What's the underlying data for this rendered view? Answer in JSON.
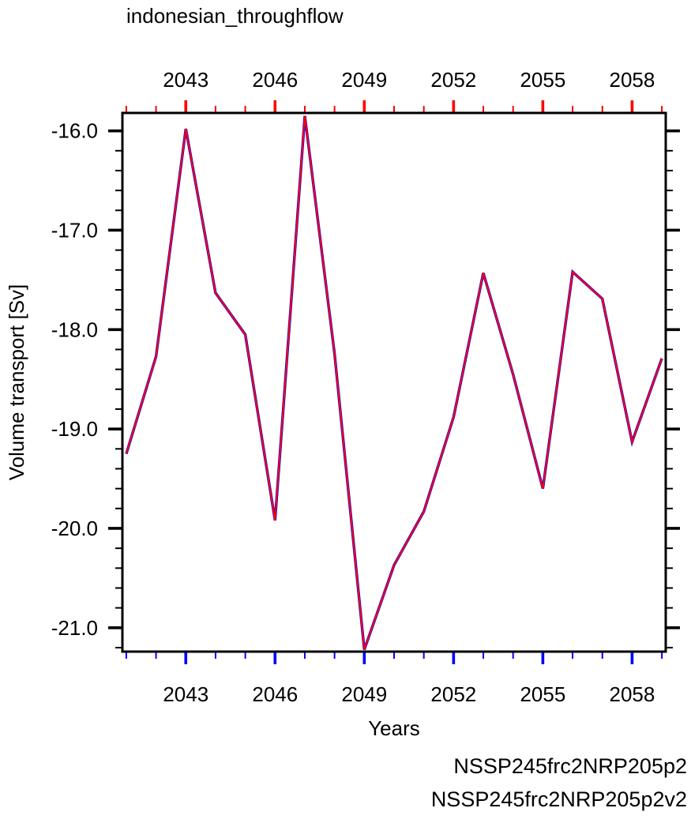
{
  "chart_data": {
    "type": "line",
    "title": "indonesian_throughflow",
    "xlabel": "Years",
    "ylabel": "Volume transport [Sv]",
    "x": [
      2041,
      2042,
      2043,
      2044,
      2045,
      2046,
      2047,
      2048,
      2049,
      2050,
      2051,
      2052,
      2053,
      2054,
      2055,
      2056,
      2057,
      2058,
      2059
    ],
    "series": [
      {
        "name": "NSSP245frc2NRP205p2",
        "color": "#0000ff",
        "values": [
          -19.25,
          -18.27,
          -15.98,
          -17.63,
          -18.05,
          -19.92,
          -15.85,
          -18.24,
          -21.22,
          -20.37,
          -19.83,
          -18.88,
          -17.43,
          -18.45,
          -19.6,
          -17.42,
          -17.69,
          -19.13,
          -18.29
        ]
      },
      {
        "name": "NSSP245frc2NRP205p2v2",
        "color": "#ff0000",
        "values": [
          -19.25,
          -18.27,
          -15.98,
          -17.63,
          -18.05,
          -19.92,
          -15.85,
          -18.24,
          -21.22,
          -20.37,
          -19.83,
          -18.88,
          -17.43,
          -18.45,
          -19.6,
          -17.42,
          -17.69,
          -19.13,
          -18.29
        ]
      }
    ],
    "xlim": [
      2040.87,
      2059.13
    ],
    "ylim": [
      -21.24,
      -15.82
    ],
    "x_major_ticks": [
      2043,
      2046,
      2049,
      2052,
      2055,
      2058
    ],
    "x_minor_step": 1,
    "y_major_ticks": [
      -16.0,
      -17.0,
      -18.0,
      -19.0,
      -20.0,
      -21.0
    ],
    "y_tick_labels": [
      "-16.0",
      "-17.0",
      "-18.0",
      "-19.0",
      "-20.0",
      "-21.0"
    ],
    "y_minor_step": 0.2,
    "axis_tick_colors": {
      "top": "#ff0000",
      "bottom": "#0000ff",
      "left": "#000000",
      "right": "#000000"
    },
    "tick_label_colors": {
      "top": "#ff0000",
      "bottom": "#0000ff",
      "left": "#000000"
    },
    "frame_color": "#000000",
    "grid": false,
    "legend_position": "bottom-right"
  }
}
